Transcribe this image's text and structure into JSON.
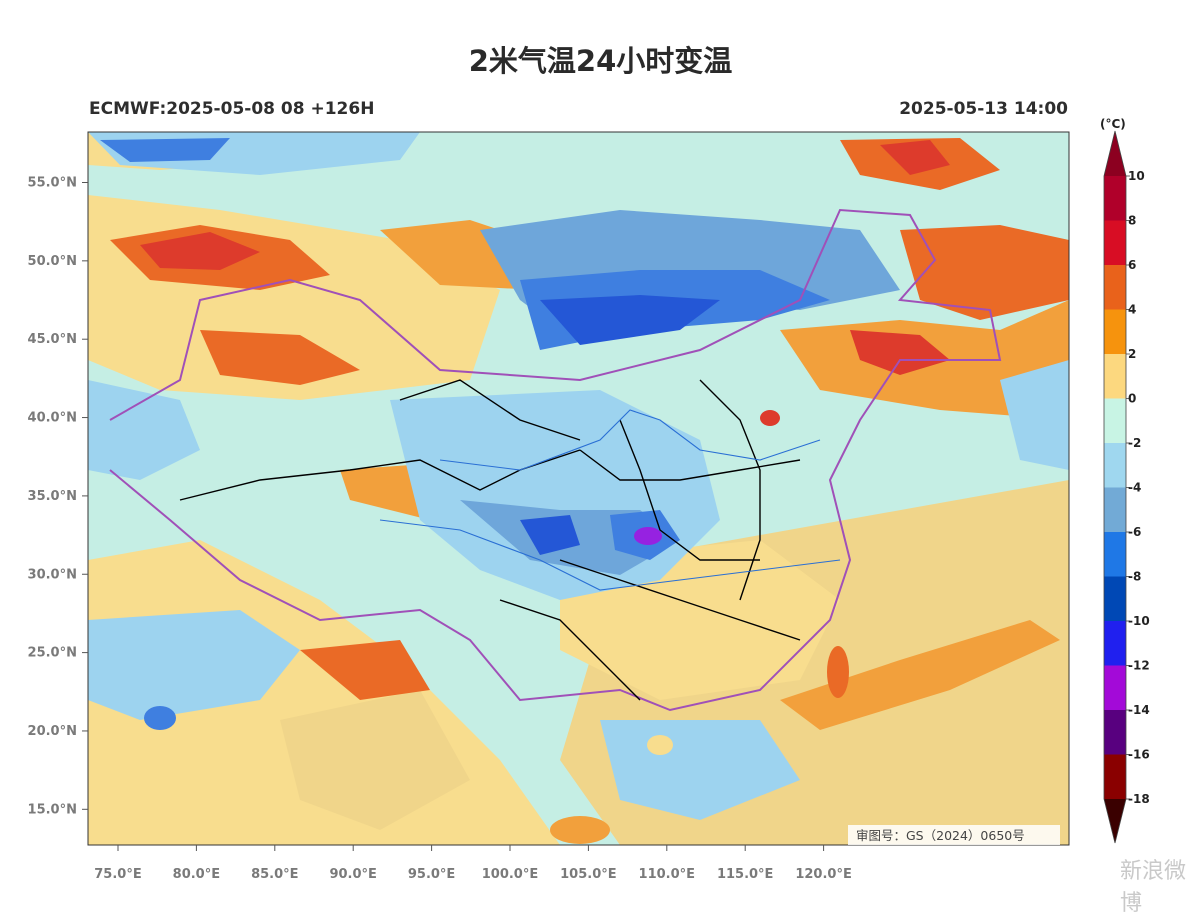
{
  "title": "2米气温24小时变温",
  "subtitle_left": "ECMWF:2025-05-08 08 +126H",
  "subtitle_right": "2025-05-13 14:00",
  "unit": "(°C)",
  "review_number": "审图号：GS（2024）0650号",
  "watermark": "新浪微博",
  "lat_ticks": [
    "55.0°N",
    "50.0°N",
    "45.0°N",
    "40.0°N",
    "35.0°N",
    "30.0°N",
    "25.0°N",
    "20.0°N",
    "15.0°N"
  ],
  "lat_values": [
    55,
    50,
    45,
    40,
    35,
    30,
    25,
    20,
    15
  ],
  "lon_ticks": [
    "75.0°E",
    "80.0°E",
    "85.0°E",
    "90.0°E",
    "95.0°E",
    "100.0°E",
    "105.0°E",
    "110.0°E",
    "115.0°E",
    "120.0°E"
  ],
  "lon_values": [
    75,
    80,
    85,
    90,
    95,
    100,
    105,
    110,
    115,
    120
  ],
  "colorbar": {
    "labels": [
      "10",
      "8",
      "6",
      "4",
      "2",
      "0",
      "-2",
      "-4",
      "-6",
      "-8",
      "-10",
      "-12",
      "-14",
      "-16",
      "-18"
    ],
    "colors": [
      "#b0002a",
      "#d80d24",
      "#e9621b",
      "#f6930d",
      "#fcd87f",
      "#c8f4e4",
      "#9fd7ef",
      "#72aad6",
      "#1f78e6",
      "#0048b5",
      "#2020ef",
      "#a30ad8",
      "#58007f",
      "#8a0000"
    ],
    "top_color": "#8c0020",
    "bottom_color": "#3a0000"
  },
  "map_colors": {
    "base": "#c5eee4",
    "light_warm": "#f8dd8e",
    "ocean_warm": "#f0d58a",
    "warm": "#f2a03c",
    "hot": "#ea6a26",
    "very_hot": "#dd3b2c",
    "light_blue": "#9dd3ef",
    "mid_blue": "#6ea6da",
    "blue": "#3f7fe0",
    "deep_blue": "#2457d6",
    "purple": "#9b1ee0",
    "border_intl": "#a050b8",
    "border_prov": "#000000",
    "river": "#2a6fd4"
  }
}
